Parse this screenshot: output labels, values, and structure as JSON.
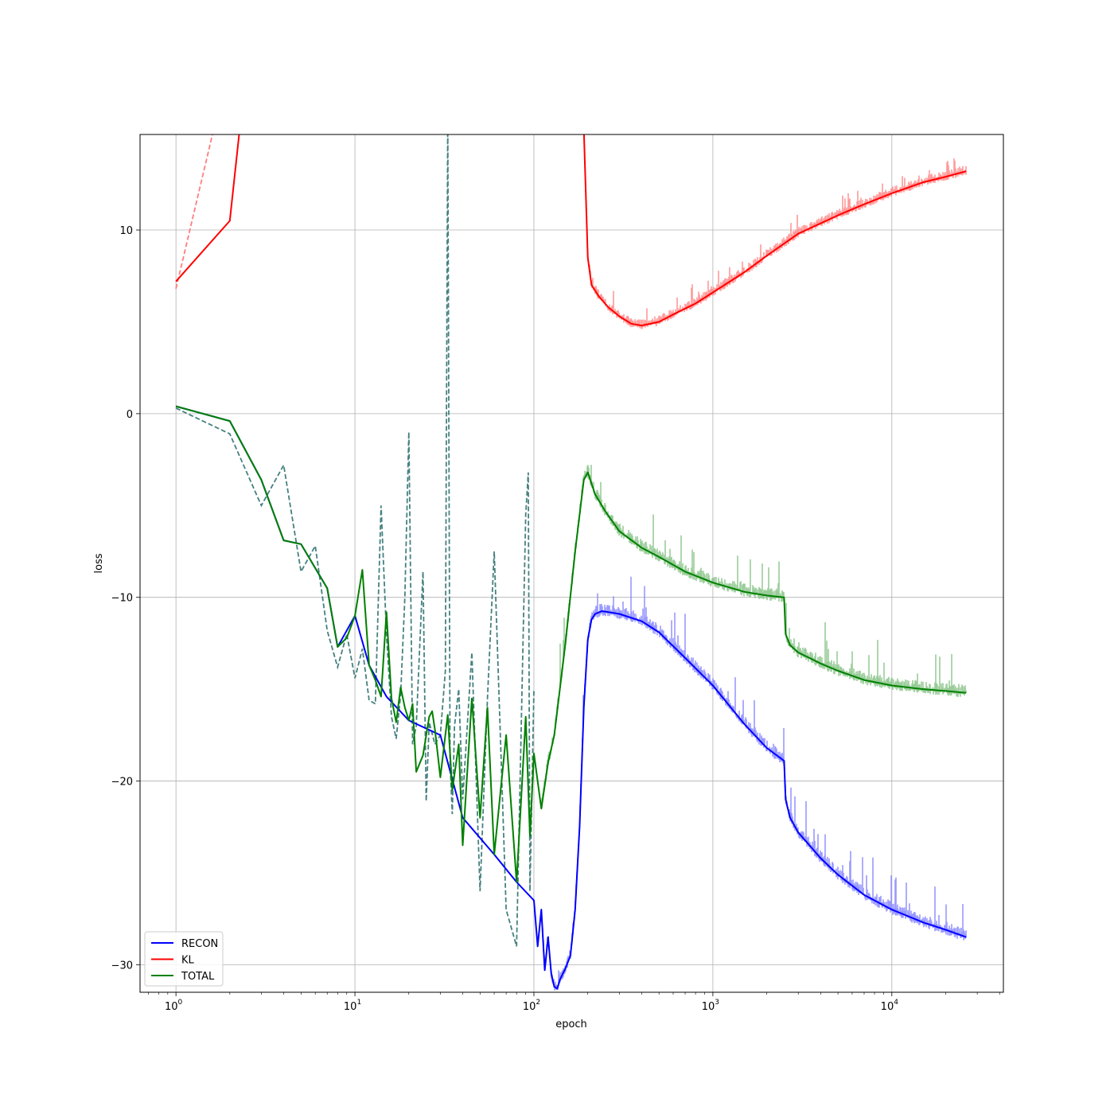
{
  "chart_data": {
    "type": "line",
    "title": "",
    "xlabel": "epoch",
    "ylabel": "loss",
    "x_scale": "log",
    "xlim": [
      0.63,
      42000
    ],
    "ylim": [
      -31.5,
      15.2
    ],
    "grid": true,
    "legend_position": "lower-left",
    "x_ticks": [
      {
        "value": 1,
        "base": "10",
        "exp": "0"
      },
      {
        "value": 10,
        "base": "10",
        "exp": "1"
      },
      {
        "value": 100,
        "base": "10",
        "exp": "2"
      },
      {
        "value": 1000,
        "base": "10",
        "exp": "3"
      },
      {
        "value": 10000,
        "base": "10",
        "exp": "4"
      }
    ],
    "y_ticks": [
      {
        "value": 10,
        "label": "10"
      },
      {
        "value": 0,
        "label": "0"
      },
      {
        "value": -10,
        "label": "−10"
      },
      {
        "value": -20,
        "label": "−20"
      },
      {
        "value": -30,
        "label": "−30"
      }
    ],
    "series": [
      {
        "name": "RECON",
        "color": "#0000ff",
        "style": "solid",
        "x": [
          1,
          2,
          3,
          4,
          5,
          7,
          8,
          10,
          12,
          15,
          20,
          30,
          40,
          60,
          80,
          100,
          105,
          110,
          115,
          120,
          125,
          130,
          135,
          140,
          150,
          160,
          170,
          180,
          190,
          200,
          210,
          220,
          240,
          260,
          300,
          400,
          500,
          700,
          1000,
          1500,
          2000,
          2500,
          2550,
          2700,
          3000,
          4000,
          5000,
          7000,
          10000,
          15000,
          20000,
          26000
        ],
        "y": [
          0.4,
          -0.4,
          -3.6,
          -6.9,
          -7.1,
          -9.5,
          -12.7,
          -11.0,
          -13.7,
          -15.4,
          -16.7,
          -17.5,
          -22.0,
          -24.0,
          -25.5,
          -26.5,
          -29.0,
          -27.0,
          -30.3,
          -28.5,
          -30.5,
          -31.2,
          -31.3,
          -30.8,
          -30.2,
          -29.5,
          -27.0,
          -22.5,
          -16.0,
          -12.3,
          -11.2,
          -10.9,
          -10.75,
          -10.8,
          -10.9,
          -11.3,
          -11.9,
          -13.3,
          -14.8,
          -16.9,
          -18.2,
          -18.9,
          -21.0,
          -22.0,
          -22.8,
          -24.2,
          -25.1,
          -26.2,
          -27.0,
          -27.7,
          -28.1,
          -28.5
        ]
      },
      {
        "name": "KL",
        "color": "#ff0000",
        "style": "solid",
        "x": [
          1,
          2,
          2.3,
          190,
          195,
          200,
          210,
          230,
          260,
          300,
          350,
          400,
          500,
          600,
          800,
          1000,
          1500,
          2000,
          3000,
          5000,
          7000,
          10000,
          15000,
          20000,
          26000
        ],
        "y": [
          7.2,
          10.5,
          16.0,
          15.5,
          12.0,
          8.5,
          7.0,
          6.4,
          5.8,
          5.3,
          4.9,
          4.8,
          5.0,
          5.4,
          6.0,
          6.6,
          7.7,
          8.6,
          9.8,
          10.8,
          11.4,
          12.0,
          12.6,
          12.9,
          13.2
        ]
      },
      {
        "name": "TOTAL",
        "color": "#008000",
        "style": "solid",
        "x": [
          1,
          2,
          3,
          4,
          5,
          7,
          8,
          9,
          10,
          11,
          12,
          13,
          14,
          15,
          16,
          17,
          18,
          19,
          20,
          21,
          22,
          24,
          26,
          27,
          28,
          30,
          32,
          33,
          35,
          38,
          40,
          45,
          50,
          55,
          60,
          70,
          80,
          90,
          95,
          100,
          110,
          120,
          130,
          150,
          170,
          190,
          200,
          220,
          250,
          300,
          400,
          500,
          700,
          1000,
          1500,
          2000,
          2500,
          2550,
          2700,
          3000,
          4000,
          5000,
          7000,
          10000,
          15000,
          20000,
          26000
        ],
        "y": [
          0.4,
          -0.4,
          -3.6,
          -6.9,
          -7.1,
          -9.5,
          -12.7,
          -12.2,
          -11.0,
          -8.5,
          -13.7,
          -14.5,
          -15.4,
          -10.8,
          -15.5,
          -16.8,
          -14.9,
          -16.0,
          -16.7,
          -15.8,
          -19.5,
          -18.6,
          -16.5,
          -16.2,
          -17.2,
          -19.8,
          -17.5,
          -16.4,
          -20.5,
          -18.0,
          -23.5,
          -15.5,
          -22.0,
          -16.0,
          -24.0,
          -17.5,
          -25.5,
          -16.5,
          -23.0,
          -18.5,
          -21.5,
          -19.0,
          -17.5,
          -12.5,
          -7.5,
          -3.6,
          -3.2,
          -4.4,
          -5.3,
          -6.4,
          -7.3,
          -7.8,
          -8.6,
          -9.2,
          -9.7,
          -9.9,
          -10.0,
          -12.0,
          -12.6,
          -13.0,
          -13.6,
          -14.0,
          -14.5,
          -14.8,
          -15.0,
          -15.1,
          -15.2
        ]
      }
    ],
    "shadow_series": [
      {
        "name": "",
        "color": "#ff7777",
        "style": "dashed",
        "x": [
          1,
          1.6,
          1.8
        ],
        "y": [
          6.8,
          15.2,
          16.0
        ]
      },
      {
        "name": "",
        "color": "#3b7a78",
        "style": "dashed",
        "x": [
          1,
          2,
          3,
          4,
          5,
          6,
          7,
          8,
          9,
          10,
          11,
          12,
          13,
          14,
          15,
          16,
          17,
          18,
          19,
          20,
          21,
          22,
          24,
          25,
          26,
          28,
          30,
          32,
          33,
          34,
          35,
          36,
          38,
          40,
          45,
          50,
          55,
          60,
          70,
          80,
          90,
          93,
          95,
          100
        ],
        "y": [
          0.3,
          -1.1,
          -5.0,
          -2.8,
          -8.6,
          -7.2,
          -11.8,
          -13.8,
          -12.0,
          -14.4,
          -12.8,
          -15.6,
          -15.8,
          -5.0,
          -12.0,
          -16.5,
          -17.7,
          -15.3,
          -10.0,
          -1.0,
          -18.0,
          -17.0,
          -8.6,
          -21.1,
          -16.8,
          -18.0,
          -17.5,
          -14.0,
          16.0,
          -19.0,
          -21.8,
          -17.0,
          -15.0,
          -21.0,
          -13.0,
          -26.0,
          -15.5,
          -7.5,
          -27.0,
          -29.0,
          -5.5,
          -3.2,
          -26.0,
          -15.0
        ]
      }
    ]
  }
}
